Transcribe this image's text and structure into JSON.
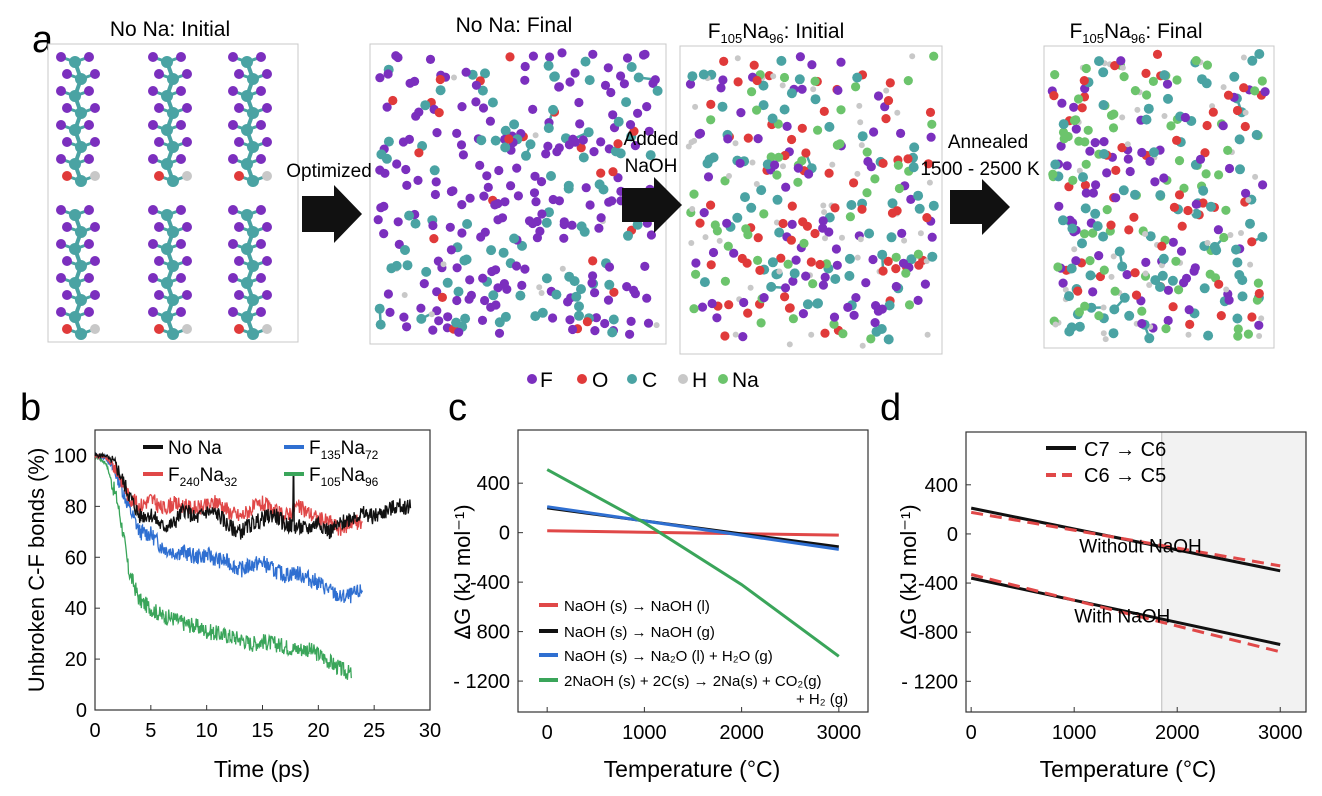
{
  "panel_labels": {
    "a": "a",
    "b": "b",
    "c": "c",
    "d": "d"
  },
  "panel_a": {
    "boxes": [
      {
        "title": "No Na: Initial"
      },
      {
        "title": "No Na: Final"
      },
      {
        "title_main": "F",
        "sub1": "105",
        "mid": "Na",
        "sub2": "96",
        "suffix": ": Initial"
      },
      {
        "title_main": "F",
        "sub1": "105",
        "mid": "Na",
        "sub2": "96",
        "suffix": ": Final"
      }
    ],
    "arrows": [
      {
        "line1": "Optimized",
        "line2": ""
      },
      {
        "line1": "Added",
        "line2": "NaOH"
      },
      {
        "line1": "Annealed",
        "line2": "1500 - 2500  K"
      }
    ]
  },
  "atom_legend": [
    {
      "label": "F",
      "color": "#7b2fbe"
    },
    {
      "label": "O",
      "color": "#e03a3a"
    },
    {
      "label": "C",
      "color": "#4aa3a3"
    },
    {
      "label": "H",
      "color": "#c8c8c8"
    },
    {
      "label": "Na",
      "color": "#6cc46c"
    }
  ],
  "chart_data": [
    {
      "panel": "b",
      "type": "line",
      "title": "",
      "xlabel": "Time (ps)",
      "ylabel": "Unbroken C-F  bonds (%)",
      "xlim": [
        0,
        30
      ],
      "ylim": [
        0,
        110
      ],
      "xticks": [
        0,
        5,
        10,
        15,
        20,
        25,
        30
      ],
      "yticks": [
        0,
        20,
        40,
        60,
        80,
        100
      ],
      "series": [
        {
          "name": "No Na",
          "color": "#111111",
          "x": [
            0,
            1,
            2,
            3,
            4,
            5,
            6,
            7,
            8,
            9,
            10,
            11,
            12,
            13,
            14,
            15,
            16,
            17,
            18,
            19,
            20,
            21,
            22,
            23,
            24,
            25,
            26,
            27,
            28.3
          ],
          "y": [
            100,
            100,
            95,
            85,
            76,
            77,
            72,
            73,
            79,
            75,
            78,
            77,
            72,
            70,
            73,
            75,
            77,
            73,
            72,
            71,
            74,
            70,
            73,
            76,
            77,
            76,
            78,
            80,
            80
          ]
        },
        {
          "name": "F",
          "sub1": "240",
          "mid": "Na",
          "sub2": "32",
          "color": "#e04848",
          "x": [
            0,
            1,
            2,
            3,
            4,
            5,
            6,
            7,
            8,
            9,
            10,
            11,
            12,
            13,
            14,
            15,
            16,
            17,
            18,
            19,
            20,
            21,
            22,
            23,
            24
          ],
          "y": [
            100,
            99,
            94,
            84,
            80,
            83,
            79,
            81,
            80,
            79,
            80,
            82,
            78,
            76,
            79,
            81,
            78,
            76,
            80,
            78,
            75,
            74,
            71,
            74,
            73
          ]
        },
        {
          "name": "F",
          "sub1": "135",
          "mid": "Na",
          "sub2": "72",
          "color": "#2f6fd1",
          "x": [
            0,
            1,
            2,
            3,
            4,
            5,
            6,
            7,
            8,
            9,
            10,
            11,
            12,
            13,
            14,
            15,
            16,
            17,
            18,
            19,
            20,
            21,
            22,
            23,
            24
          ],
          "y": [
            100,
            99,
            92,
            80,
            70,
            69,
            64,
            62,
            62,
            60,
            61,
            59,
            58,
            55,
            57,
            58,
            55,
            53,
            54,
            52,
            50,
            47,
            44,
            45,
            47
          ]
        },
        {
          "name": "F",
          "sub1": "105",
          "mid": "Na",
          "sub2": "96",
          "color": "#3aa55a",
          "x": [
            0,
            1,
            2,
            2.5,
            3,
            4,
            5,
            6,
            7,
            8,
            9,
            10,
            11,
            12,
            13,
            14,
            15,
            16,
            17,
            18,
            19,
            20,
            21,
            22,
            23
          ],
          "y": [
            100,
            97,
            82,
            70,
            55,
            43,
            40,
            37,
            36,
            34,
            33,
            31,
            30,
            29,
            28,
            26,
            27,
            26,
            25,
            24,
            24,
            22,
            19,
            16,
            14
          ]
        }
      ],
      "annotations": [
        {
          "x": 17.8,
          "y": 92,
          "note": "spike"
        }
      ]
    },
    {
      "panel": "c",
      "type": "line",
      "title": "",
      "xlabel": "Temperature (°C)",
      "ylabel": "ΔG (kJ mol⁻¹)",
      "xlim": [
        -300,
        3300
      ],
      "ylim": [
        -1450,
        830
      ],
      "xticks": [
        0,
        1000,
        2000,
        3000
      ],
      "yticks": [
        400,
        0,
        -400,
        -800,
        -1200
      ],
      "ytick_labels": [
        "400",
        "0",
        "-400",
        "- 800",
        "- 1200"
      ],
      "series": [
        {
          "name": "NaOH (s) → NaOH (l)",
          "color": "#e04848",
          "x": [
            0,
            3000
          ],
          "y": [
            15,
            -20
          ]
        },
        {
          "name": "NaOH (s) → NaOH (g)",
          "color": "#111111",
          "x": [
            0,
            3000
          ],
          "y": [
            200,
            -115
          ]
        },
        {
          "name": "NaOH (s) → Na₂O (l) + H₂O (g)",
          "color": "#2f6fd1",
          "x": [
            0,
            3000
          ],
          "y": [
            210,
            -135
          ]
        },
        {
          "name": "2NaOH (s) + 2C(s) → 2Na(s) + CO₂(g)",
          "name2": "+ H₂ (g)",
          "color": "#3aa55a",
          "x": [
            0,
            1000,
            2000,
            3000
          ],
          "y": [
            510,
            80,
            -420,
            -1000
          ]
        }
      ]
    },
    {
      "panel": "d",
      "type": "line",
      "title": "",
      "xlabel": "Temperature (°C)",
      "ylabel": "ΔG (kJ mol⁻¹)",
      "xlim": [
        -50,
        3250
      ],
      "ylim": [
        -1450,
        830
      ],
      "xticks": [
        0,
        1000,
        2000,
        3000
      ],
      "yticks": [
        400,
        0,
        -400,
        -800,
        -1200
      ],
      "ytick_labels": [
        "400",
        "0",
        "-400",
        "-800",
        "- 1200"
      ],
      "shaded_region": [
        1850,
        3250
      ],
      "series": [
        {
          "name": "C7  → C6",
          "color": "#111111",
          "dash": false,
          "x": [
            0,
            3000
          ],
          "y": [
            210,
            -300
          ]
        },
        {
          "name": "C6  → C5",
          "color": "#e04848",
          "dash": true,
          "x": [
            0,
            3000
          ],
          "y": [
            175,
            -260
          ]
        },
        {
          "name": "C7 with",
          "color": "#111111",
          "dash": false,
          "legend": false,
          "x": [
            0,
            3000
          ],
          "y": [
            -360,
            -900
          ]
        },
        {
          "name": "C6 with",
          "color": "#e04848",
          "dash": true,
          "legend": false,
          "x": [
            0,
            3000
          ],
          "y": [
            -330,
            -960
          ]
        }
      ],
      "annotations": [
        {
          "text": "Without NaOH",
          "x": 1050,
          "y": -150
        },
        {
          "text": "With NaOH",
          "x": 1000,
          "y": -720
        }
      ]
    }
  ]
}
